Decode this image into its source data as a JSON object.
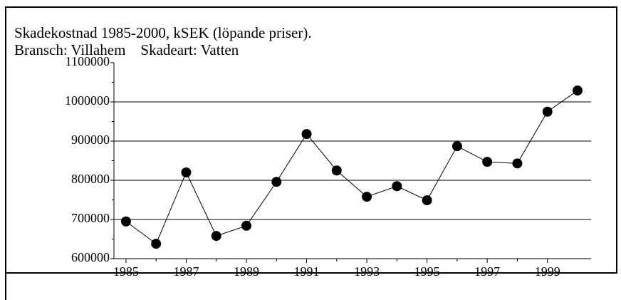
{
  "chart_data": {
    "type": "line",
    "title": "Skadekostnad 1985-2000, kSEK (löpande priser).",
    "subtitle": "Bransch: Villahem    Skadeart: Vatten",
    "x": [
      1985,
      1986,
      1987,
      1988,
      1989,
      1990,
      1991,
      1992,
      1993,
      1994,
      1995,
      1996,
      1997,
      1998,
      1999,
      2000
    ],
    "series": [
      {
        "name": "Skadekostnad",
        "color": "#000000",
        "values": [
          695000,
          638000,
          820000,
          658000,
          684000,
          796000,
          918000,
          825000,
          758000,
          785000,
          749000,
          887000,
          847000,
          843000,
          975000,
          1029000
        ]
      }
    ],
    "xlim": [
      1984.6,
      2000.45
    ],
    "xticks": [
      1985,
      1987,
      1989,
      1991,
      1993,
      1995,
      1997,
      1999
    ],
    "ylim": [
      600000,
      1100000
    ],
    "yticks": [
      600000,
      700000,
      800000,
      900000,
      1000000,
      1100000
    ],
    "grid": true
  }
}
